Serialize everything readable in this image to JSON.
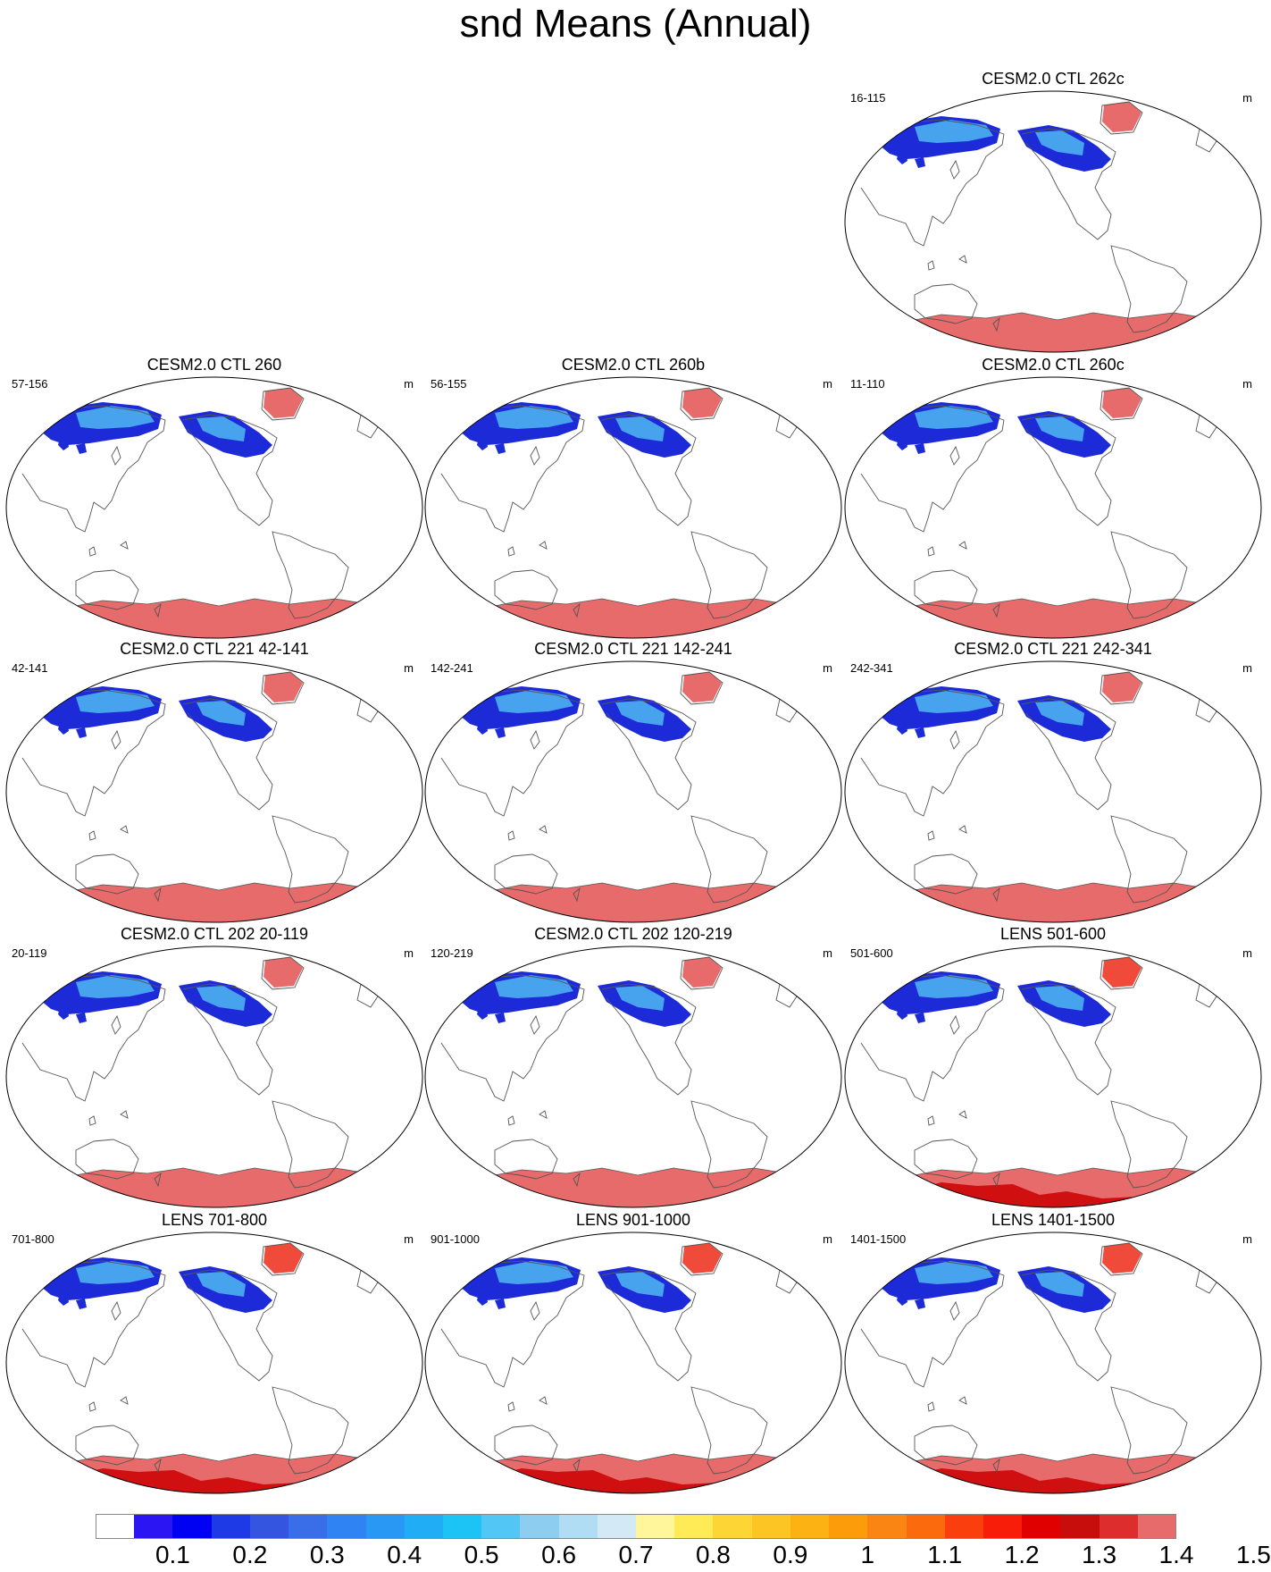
{
  "title": "snd Means (Annual)",
  "unit": "m",
  "colors": {
    "antarctica_ctl": "#e86b6b",
    "antarctica_lens_interior": "#d01010",
    "map_outline": "#000000",
    "coastline": "#555555",
    "snow_blue_dark": "#1d2ad8",
    "snow_blue_light": "#4fb8f2"
  },
  "panels": [
    {
      "title": "CESM2.0 CTL 262c",
      "years": "16-115",
      "unit": "m",
      "variant": "ctl"
    },
    {
      "title": "CESM2.0 CTL 260",
      "years": "57-156",
      "unit": "m",
      "variant": "ctl"
    },
    {
      "title": "CESM2.0 CTL 260b",
      "years": "56-155",
      "unit": "m",
      "variant": "ctl"
    },
    {
      "title": "CESM2.0 CTL 260c",
      "years": "11-110",
      "unit": "m",
      "variant": "ctl"
    },
    {
      "title": "CESM2.0 CTL 221 42-141",
      "years": "42-141",
      "unit": "m",
      "variant": "ctl"
    },
    {
      "title": "CESM2.0 CTL 221 142-241",
      "years": "142-241",
      "unit": "m",
      "variant": "ctl"
    },
    {
      "title": "CESM2.0 CTL 221 242-341",
      "years": "242-341",
      "unit": "m",
      "variant": "ctl"
    },
    {
      "title": "CESM2.0 CTL 202 20-119",
      "years": "20-119",
      "unit": "m",
      "variant": "ctl"
    },
    {
      "title": "CESM2.0 CTL 202 120-219",
      "years": "120-219",
      "unit": "m",
      "variant": "ctl"
    },
    {
      "title": "LENS 501-600",
      "years": "501-600",
      "unit": "m",
      "variant": "lens"
    },
    {
      "title": "LENS 701-800",
      "years": "701-800",
      "unit": "m",
      "variant": "lens"
    },
    {
      "title": "LENS 901-1000",
      "years": "901-1000",
      "unit": "m",
      "variant": "lens"
    },
    {
      "title": "LENS 1401-1500",
      "years": "1401-1500",
      "unit": "m",
      "variant": "lens"
    }
  ],
  "colorbar": {
    "colors": [
      "#ffffff",
      "#2b15f2",
      "#0000f2",
      "#1e3ae6",
      "#3455e0",
      "#3a6ee8",
      "#2f83f2",
      "#2998f5",
      "#20adf5",
      "#1cc4f5",
      "#52c6f5",
      "#8ccdf0",
      "#b0dcf4",
      "#d3e9f6",
      "#fff59a",
      "#ffeb55",
      "#fdd635",
      "#fcc523",
      "#fcb212",
      "#fc9c0a",
      "#fb8512",
      "#fb6b0e",
      "#fa3e0e",
      "#f71d08",
      "#e00000",
      "#c80d0d",
      "#dd2d2d",
      "#e86b6b"
    ],
    "labels": [
      "0.1",
      "0.2",
      "0.3",
      "0.4",
      "0.5",
      "0.6",
      "0.7",
      "0.8",
      "0.9",
      "1",
      "1.1",
      "1.2",
      "1.3",
      "1.4",
      "1.5"
    ]
  }
}
